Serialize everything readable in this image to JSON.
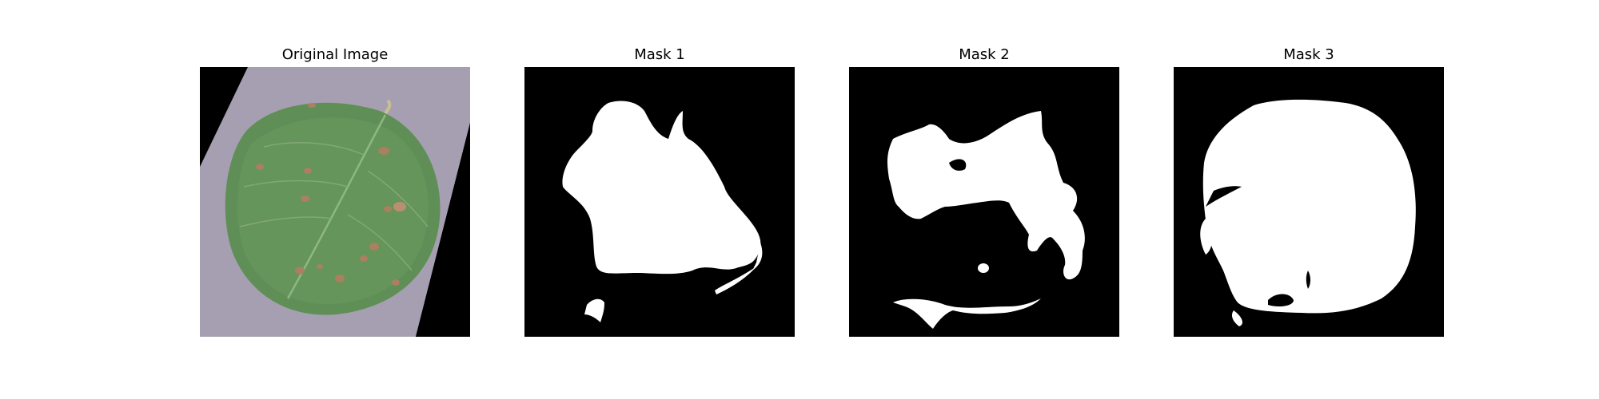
{
  "panels": [
    {
      "title": "Original Image"
    },
    {
      "title": "Mask 1"
    },
    {
      "title": "Mask 2"
    },
    {
      "title": "Mask 3"
    }
  ],
  "colors": {
    "background": "#ffffff",
    "mask_background": "#000000",
    "mask_foreground": "#ffffff",
    "leaf": "#5f8f56",
    "leaf_dark": "#4b7445",
    "spot": "#a98060",
    "surface": "#a69fb1"
  }
}
